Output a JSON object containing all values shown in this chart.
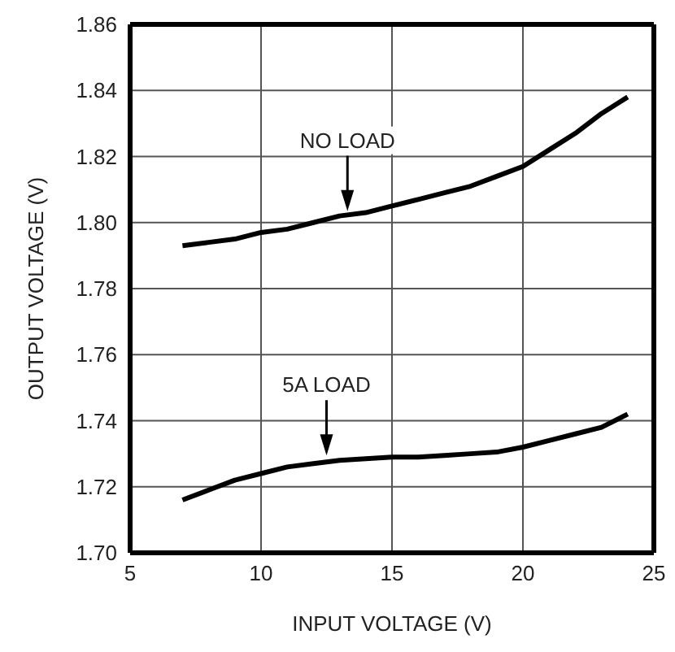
{
  "chart_data": {
    "type": "line",
    "xlabel": "INPUT VOLTAGE (V)",
    "ylabel": "OUTPUT VOLTAGE (V)",
    "x": [
      7,
      8,
      9,
      10,
      11,
      12,
      13,
      14,
      15,
      16,
      17,
      18,
      19,
      20,
      21,
      22,
      23,
      24
    ],
    "series": [
      {
        "color": "#000000",
        "values": [
          1.793,
          1.794,
          1.795,
          1.797,
          1.798,
          1.8,
          1.802,
          1.803,
          1.805,
          1.807,
          1.809,
          1.811,
          1.814,
          1.817,
          1.822,
          1.827,
          1.833,
          1.838
        ]
      },
      {
        "color": "#000000",
        "values": [
          1.716,
          1.719,
          1.722,
          1.724,
          1.726,
          1.727,
          1.728,
          1.7285,
          1.729,
          1.729,
          1.7295,
          1.73,
          1.7305,
          1.732,
          1.734,
          1.736,
          1.738,
          1.742
        ]
      }
    ],
    "xlim": [
      5,
      25
    ],
    "xticks": [
      5,
      10,
      15,
      20,
      25
    ],
    "ylim": [
      1.7,
      1.86
    ],
    "yticks": [
      {
        "value": 1.7,
        "label": "1.70"
      },
      {
        "value": 1.72,
        "label": "1.72"
      },
      {
        "value": 1.74,
        "label": "1.74"
      },
      {
        "value": 1.76,
        "label": "1.76"
      },
      {
        "value": 1.78,
        "label": "1.78"
      },
      {
        "value": 1.8,
        "label": "1.80"
      },
      {
        "value": 1.82,
        "label": "1.82"
      },
      {
        "value": 1.84,
        "label": "1.84"
      },
      {
        "value": 1.86,
        "label": "1.86"
      }
    ],
    "grid": true,
    "marker": "none",
    "line_style": "solid",
    "annotations": [
      {
        "text": "NO LOAD",
        "x": 13.3,
        "y": 1.802
      },
      {
        "text": "5A LOAD",
        "x": 12.5,
        "y": 1.728
      }
    ]
  }
}
